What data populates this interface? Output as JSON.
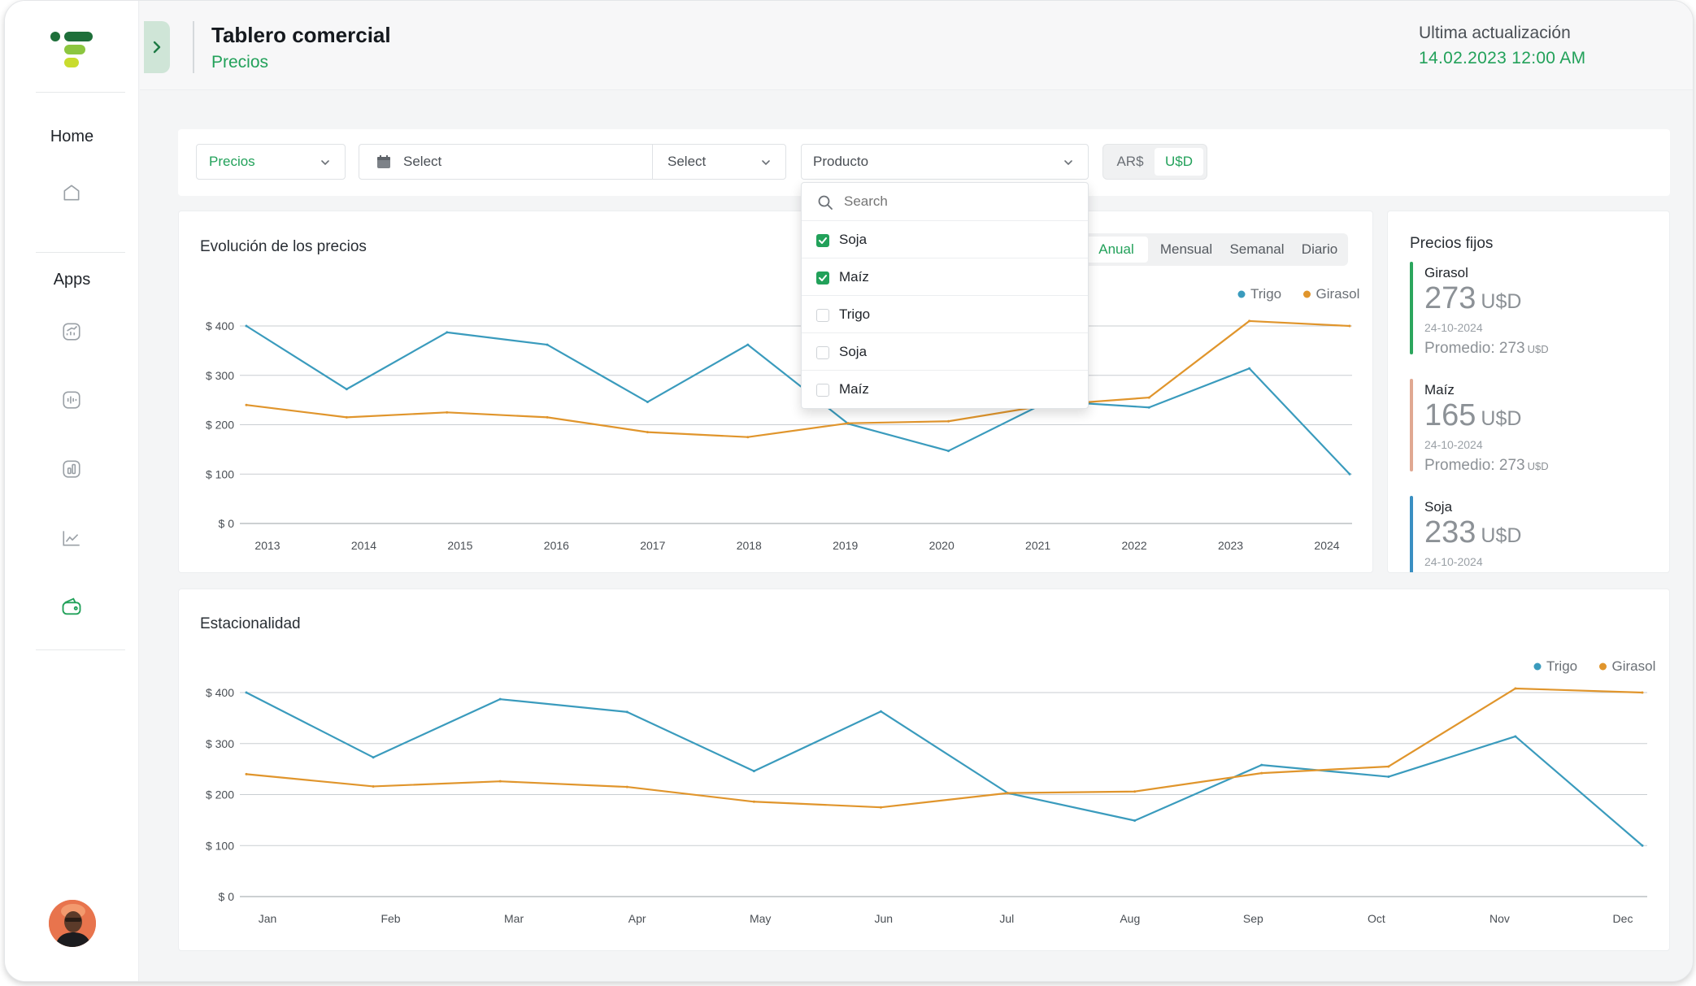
{
  "header": {
    "title": "Tablero comercial",
    "subtitle": "Precios",
    "update_label": "Ultima actualización",
    "update_value": "14.02.2023  12:00 AM"
  },
  "sidebar": {
    "home_label": "Home",
    "apps_label": "Apps",
    "icons": [
      "home-icon",
      "chart-up-icon",
      "audio-wave-icon",
      "bar-chart-icon",
      "line-chart-icon",
      "wallet-icon"
    ],
    "active_icon": "wallet-icon"
  },
  "filters": {
    "type_select": "Precios",
    "date_from": "Select",
    "date_to": "Select",
    "product_placeholder": "Producto",
    "currency_options": [
      "AR$",
      "U$D"
    ],
    "currency_selected": "U$D"
  },
  "dropdown": {
    "search_placeholder": "Search",
    "options": [
      {
        "label": "Soja",
        "checked": true
      },
      {
        "label": "Maíz",
        "checked": true
      },
      {
        "label": "Trigo",
        "checked": false
      },
      {
        "label": "Soja",
        "checked": false
      },
      {
        "label": "Maíz",
        "checked": false
      }
    ]
  },
  "evolution": {
    "title": "Evolución de los precios",
    "tabs": [
      "Anual",
      "Mensual",
      "Semanal",
      "Diario"
    ],
    "active_tab": "Anual"
  },
  "seasonality": {
    "title": "Estacionalidad"
  },
  "fixed_prices": {
    "title": "Precios fijos",
    "items": [
      {
        "name": "Girasol",
        "value": "273",
        "unit": "U$D",
        "date": "24-10-2024",
        "avg_label": "Promedio: 273",
        "avg_unit": "U$D",
        "color": "#2ca65d"
      },
      {
        "name": "Maíz",
        "value": "165",
        "unit": "U$D",
        "date": "24-10-2024",
        "avg_label": "Promedio: 273",
        "avg_unit": "U$D",
        "color": "#e0a892"
      },
      {
        "name": "Soja",
        "value": "233",
        "unit": "U$D",
        "date": "24-10-2024",
        "avg_label": "",
        "avg_unit": "",
        "color": "#3a8fc2"
      }
    ]
  },
  "colors": {
    "accent": "#22a15a",
    "trigo": "#3a9bbd",
    "girasol": "#e0952c"
  },
  "chart_data": [
    {
      "type": "line",
      "title": "Evolución de los precios",
      "x": [
        "2013",
        "2014",
        "2015",
        "2016",
        "2017",
        "2018",
        "2019",
        "2020",
        "2021",
        "2022",
        "2023",
        "2024"
      ],
      "yticks": [
        "$ 0",
        "$ 100",
        "$ 200",
        "$ 300",
        "$ 400"
      ],
      "ylim": [
        0,
        400
      ],
      "grid": true,
      "legend": "top-right",
      "series": [
        {
          "name": "Trigo",
          "color": "#3a9bbd",
          "values": [
            400,
            272,
            387,
            362,
            246,
            362,
            202,
            147,
            248,
            235,
            314,
            100
          ]
        },
        {
          "name": "Girasol",
          "color": "#e0952c",
          "values": [
            240,
            215,
            225,
            215,
            185,
            175,
            203,
            207,
            240,
            255,
            410,
            400
          ]
        }
      ]
    },
    {
      "type": "line",
      "title": "Estacionalidad",
      "x": [
        "Jan",
        "Feb",
        "Mar",
        "Apr",
        "May",
        "Jun",
        "Jul",
        "Aug",
        "Sep",
        "Oct",
        "Nov",
        "Dec"
      ],
      "yticks": [
        "$ 0",
        "$ 100",
        "$ 200",
        "$ 300",
        "$ 400"
      ],
      "ylim": [
        0,
        400
      ],
      "grid": true,
      "legend": "top-right",
      "series": [
        {
          "name": "Trigo",
          "color": "#3a9bbd",
          "values": [
            400,
            273,
            387,
            362,
            246,
            363,
            203,
            149,
            258,
            235,
            314,
            100
          ]
        },
        {
          "name": "Girasol",
          "color": "#e0952c",
          "values": [
            240,
            216,
            226,
            215,
            186,
            175,
            203,
            206,
            242,
            255,
            408,
            400
          ]
        }
      ]
    }
  ]
}
